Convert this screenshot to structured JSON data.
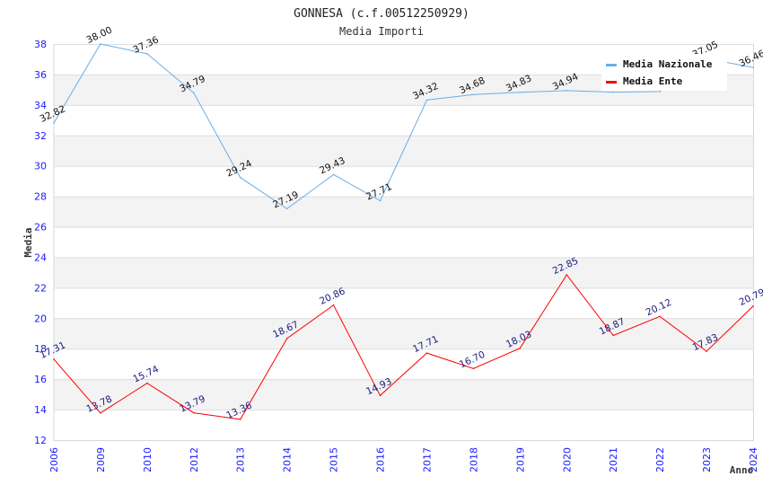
{
  "chart_data": {
    "type": "line",
    "title": "GONNESA (c.f.00512250929)",
    "subtitle": "Media Importi",
    "xlabel": "Anno",
    "ylabel": "Media",
    "ylim": [
      12,
      38
    ],
    "yticks": [
      12,
      14,
      16,
      18,
      20,
      22,
      24,
      26,
      28,
      30,
      32,
      34,
      36,
      38
    ],
    "grid": true,
    "legend_position": "top-right",
    "categories": [
      "2006",
      "2009",
      "2010",
      "2012",
      "2013",
      "2014",
      "2015",
      "2016",
      "2017",
      "2018",
      "2019",
      "2020",
      "2021",
      "2022",
      "2023",
      "2024"
    ],
    "series": [
      {
        "name": "Media Nazionale",
        "color": "#6aaee8",
        "label_color": "#111111",
        "values": [
          32.82,
          38.0,
          37.36,
          34.79,
          29.24,
          27.19,
          29.43,
          27.71,
          34.32,
          34.68,
          34.83,
          34.94,
          34.84,
          34.88,
          37.05,
          36.46
        ],
        "labels": [
          "32.82",
          "38.00",
          "37.36",
          "34.79",
          "29.24",
          "27.19",
          "29.43",
          "27.71",
          "34.32",
          "34.68",
          "34.83",
          "34.94",
          null,
          null,
          "37.05",
          "36.46"
        ]
      },
      {
        "name": "Media Ente",
        "color": "#ff0000",
        "label_color": "#1a1a80",
        "values": [
          17.31,
          13.78,
          15.74,
          13.79,
          13.36,
          18.67,
          20.86,
          14.93,
          17.71,
          16.7,
          18.03,
          22.85,
          18.87,
          20.12,
          17.83,
          20.79
        ],
        "labels": [
          "17.31",
          "13.78",
          "15.74",
          "13.79",
          "13.36",
          "18.67",
          "20.86",
          "14.93",
          "17.71",
          "16.70",
          "18.03",
          "22.85",
          "18.87",
          "20.12",
          "17.83",
          "20.79"
        ]
      }
    ]
  }
}
